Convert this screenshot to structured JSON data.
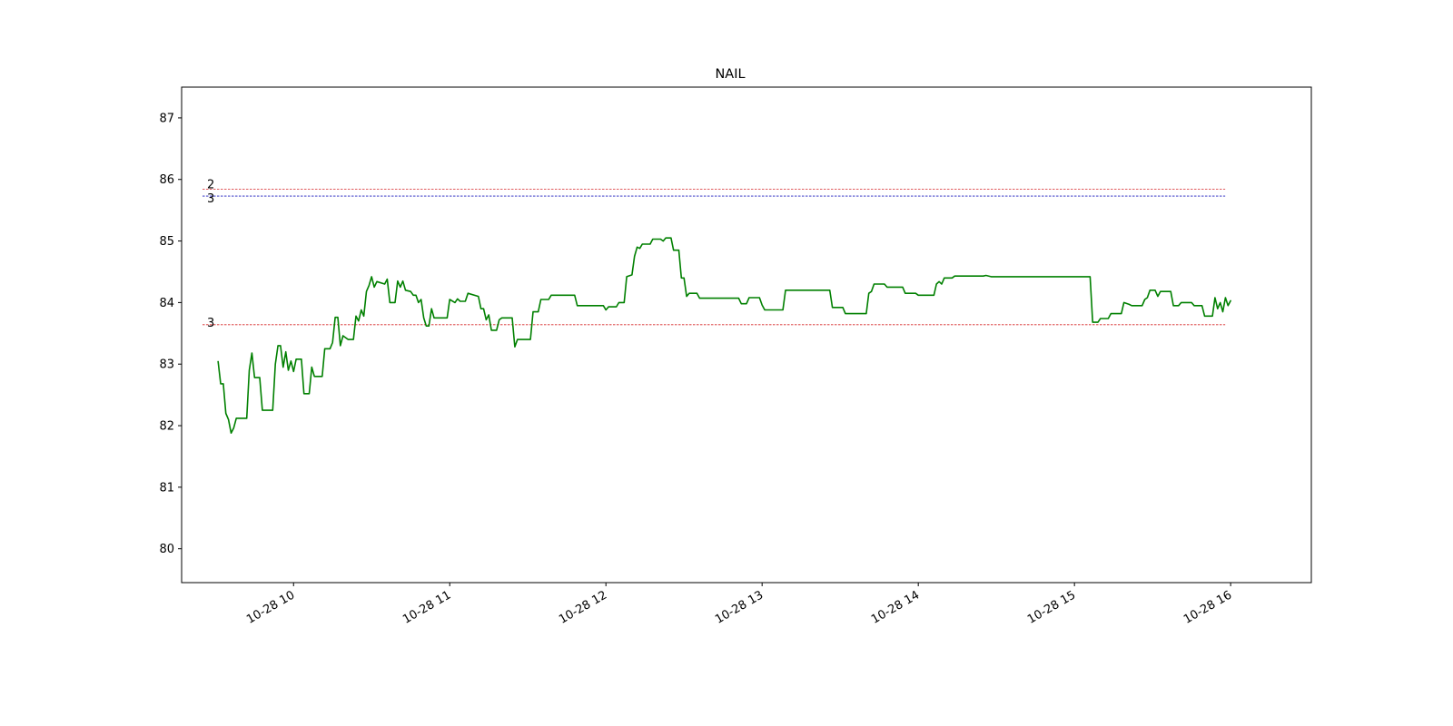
{
  "chart_data": {
    "type": "line",
    "title": "NAIL",
    "xlabel": "",
    "ylabel": "",
    "ylim": [
      79.45,
      87.5
    ],
    "xlim": [
      "10-28 09:17",
      "10-28 16:31"
    ],
    "yticks": [
      80,
      81,
      82,
      83,
      84,
      85,
      86,
      87
    ],
    "xticks": [
      {
        "time": "10-28 10:00",
        "label": "10-28 10"
      },
      {
        "time": "10-28 11:00",
        "label": "10-28 11"
      },
      {
        "time": "10-28 12:00",
        "label": "10-28 12"
      },
      {
        "time": "10-28 13:00",
        "label": "10-28 13"
      },
      {
        "time": "10-28 14:00",
        "label": "10-28 14"
      },
      {
        "time": "10-28 15:00",
        "label": "10-28 15"
      },
      {
        "time": "10-28 16:00",
        "label": "10-28 16"
      }
    ],
    "grid": false,
    "series": [
      {
        "color": "#008000",
        "points": [
          [
            "09:31",
            83.05
          ],
          [
            "09:32",
            82.68
          ],
          [
            "09:33",
            82.68
          ],
          [
            "09:34",
            82.2
          ],
          [
            "09:35",
            82.1
          ],
          [
            "09:36",
            81.88
          ],
          [
            "09:37",
            81.96
          ],
          [
            "09:38",
            82.12
          ],
          [
            "09:42",
            82.12
          ],
          [
            "09:43",
            82.9
          ],
          [
            "09:44",
            83.18
          ],
          [
            "09:45",
            82.78
          ],
          [
            "09:47",
            82.78
          ],
          [
            "09:48",
            82.25
          ],
          [
            "09:52",
            82.25
          ],
          [
            "09:53",
            83.0
          ],
          [
            "09:54",
            83.3
          ],
          [
            "09:55",
            83.3
          ],
          [
            "09:56",
            82.95
          ],
          [
            "09:57",
            83.2
          ],
          [
            "09:58",
            82.9
          ],
          [
            "09:59",
            83.05
          ],
          [
            "10:00",
            82.88
          ],
          [
            "10:01",
            83.08
          ],
          [
            "10:03",
            83.08
          ],
          [
            "10:04",
            82.52
          ],
          [
            "10:06",
            82.52
          ],
          [
            "10:07",
            82.95
          ],
          [
            "10:08",
            82.8
          ],
          [
            "10:11",
            82.8
          ],
          [
            "10:12",
            83.25
          ],
          [
            "10:14",
            83.25
          ],
          [
            "10:15",
            83.35
          ],
          [
            "10:16",
            83.76
          ],
          [
            "10:17",
            83.76
          ],
          [
            "10:18",
            83.3
          ],
          [
            "10:19",
            83.46
          ],
          [
            "10:21",
            83.4
          ],
          [
            "10:23",
            83.4
          ],
          [
            "10:24",
            83.78
          ],
          [
            "10:25",
            83.7
          ],
          [
            "10:26",
            83.88
          ],
          [
            "10:27",
            83.78
          ],
          [
            "10:28",
            84.18
          ],
          [
            "10:29",
            84.28
          ],
          [
            "10:30",
            84.42
          ],
          [
            "10:31",
            84.25
          ],
          [
            "10:32",
            84.34
          ],
          [
            "10:35",
            84.3
          ],
          [
            "10:36",
            84.38
          ],
          [
            "10:37",
            84.0
          ],
          [
            "10:39",
            84.0
          ],
          [
            "10:40",
            84.35
          ],
          [
            "10:41",
            84.25
          ],
          [
            "10:42",
            84.35
          ],
          [
            "10:43",
            84.2
          ],
          [
            "10:45",
            84.18
          ],
          [
            "10:46",
            84.12
          ],
          [
            "10:47",
            84.12
          ],
          [
            "10:48",
            84.0
          ],
          [
            "10:49",
            84.05
          ],
          [
            "10:50",
            83.75
          ],
          [
            "10:51",
            83.62
          ],
          [
            "10:52",
            83.62
          ],
          [
            "10:53",
            83.9
          ],
          [
            "10:54",
            83.75
          ],
          [
            "10:59",
            83.75
          ],
          [
            "11:00",
            84.05
          ],
          [
            "11:02",
            84.0
          ],
          [
            "11:03",
            84.06
          ],
          [
            "11:04",
            84.02
          ],
          [
            "11:06",
            84.02
          ],
          [
            "11:07",
            84.15
          ],
          [
            "11:11",
            84.1
          ],
          [
            "11:12",
            83.9
          ],
          [
            "11:13",
            83.9
          ],
          [
            "11:14",
            83.72
          ],
          [
            "11:15",
            83.8
          ],
          [
            "11:16",
            83.55
          ],
          [
            "11:18",
            83.55
          ],
          [
            "11:19",
            83.72
          ],
          [
            "11:20",
            83.75
          ],
          [
            "11:24",
            83.75
          ],
          [
            "11:25",
            83.28
          ],
          [
            "11:26",
            83.4
          ],
          [
            "11:31",
            83.4
          ],
          [
            "11:32",
            83.85
          ],
          [
            "11:34",
            83.85
          ],
          [
            "11:35",
            84.05
          ],
          [
            "11:38",
            84.05
          ],
          [
            "11:39",
            84.12
          ],
          [
            "11:48",
            84.12
          ],
          [
            "11:49",
            83.95
          ],
          [
            "11:59",
            83.95
          ],
          [
            "12:00",
            83.88
          ],
          [
            "12:01",
            83.93
          ],
          [
            "12:04",
            83.93
          ],
          [
            "12:05",
            84.0
          ],
          [
            "12:07",
            84.0
          ],
          [
            "12:08",
            84.42
          ],
          [
            "12:10",
            84.45
          ],
          [
            "12:11",
            84.75
          ],
          [
            "12:12",
            84.9
          ],
          [
            "12:13",
            84.88
          ],
          [
            "12:14",
            84.95
          ],
          [
            "12:17",
            84.95
          ],
          [
            "12:18",
            85.03
          ],
          [
            "12:21",
            85.03
          ],
          [
            "12:22",
            85.0
          ],
          [
            "12:23",
            85.05
          ],
          [
            "12:25",
            85.05
          ],
          [
            "12:26",
            84.85
          ],
          [
            "12:28",
            84.85
          ],
          [
            "12:29",
            84.4
          ],
          [
            "12:30",
            84.4
          ],
          [
            "12:31",
            84.1
          ],
          [
            "12:32",
            84.15
          ],
          [
            "12:35",
            84.15
          ],
          [
            "12:36",
            84.07
          ],
          [
            "12:51",
            84.07
          ],
          [
            "12:52",
            83.98
          ],
          [
            "12:54",
            83.98
          ],
          [
            "12:55",
            84.08
          ],
          [
            "12:59",
            84.08
          ],
          [
            "13:00",
            83.96
          ],
          [
            "13:01",
            83.88
          ],
          [
            "13:08",
            83.88
          ],
          [
            "13:09",
            84.2
          ],
          [
            "13:26",
            84.2
          ],
          [
            "13:27",
            83.92
          ],
          [
            "13:31",
            83.92
          ],
          [
            "13:32",
            83.82
          ],
          [
            "13:40",
            83.82
          ],
          [
            "13:41",
            84.15
          ],
          [
            "13:42",
            84.18
          ],
          [
            "13:43",
            84.3
          ],
          [
            "13:47",
            84.3
          ],
          [
            "13:48",
            84.25
          ],
          [
            "13:54",
            84.25
          ],
          [
            "13:55",
            84.15
          ],
          [
            "13:59",
            84.15
          ],
          [
            "14:00",
            84.12
          ],
          [
            "14:06",
            84.12
          ],
          [
            "14:07",
            84.3
          ],
          [
            "14:08",
            84.34
          ],
          [
            "14:09",
            84.3
          ],
          [
            "14:10",
            84.4
          ],
          [
            "14:13",
            84.4
          ],
          [
            "14:14",
            84.43
          ],
          [
            "14:25",
            84.43
          ],
          [
            "14:26",
            84.44
          ],
          [
            "14:28",
            84.42
          ],
          [
            "15:06",
            84.42
          ],
          [
            "15:07",
            83.68
          ],
          [
            "15:09",
            83.68
          ],
          [
            "15:10",
            83.74
          ],
          [
            "15:13",
            83.74
          ],
          [
            "15:14",
            83.82
          ],
          [
            "15:18",
            83.82
          ],
          [
            "15:19",
            84.0
          ],
          [
            "15:21",
            83.97
          ],
          [
            "15:22",
            83.95
          ],
          [
            "15:26",
            83.95
          ],
          [
            "15:27",
            84.05
          ],
          [
            "15:28",
            84.08
          ],
          [
            "15:29",
            84.2
          ],
          [
            "15:31",
            84.2
          ],
          [
            "15:32",
            84.1
          ],
          [
            "15:33",
            84.18
          ],
          [
            "15:37",
            84.18
          ],
          [
            "15:38",
            83.95
          ],
          [
            "15:40",
            83.95
          ],
          [
            "15:41",
            84.0
          ],
          [
            "15:45",
            84.0
          ],
          [
            "15:46",
            83.95
          ],
          [
            "15:49",
            83.95
          ],
          [
            "15:50",
            83.78
          ],
          [
            "15:53",
            83.78
          ],
          [
            "15:54",
            84.08
          ],
          [
            "15:55",
            83.9
          ],
          [
            "15:56",
            84.0
          ],
          [
            "15:57",
            83.85
          ],
          [
            "15:58",
            84.08
          ],
          [
            "15:59",
            83.95
          ],
          [
            "16:00",
            84.03
          ],
          [
            "16:00",
            84.04
          ]
        ]
      }
    ],
    "reference_lines": [
      {
        "label": "2",
        "value": 85.84,
        "color": "#d62728"
      },
      {
        "label": "3",
        "value": 85.73,
        "color": "#1f1fbf"
      },
      {
        "label": "3",
        "value": 83.64,
        "color": "#d62728"
      }
    ]
  }
}
